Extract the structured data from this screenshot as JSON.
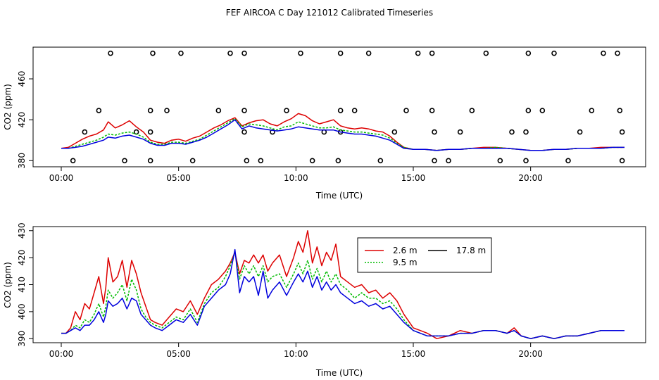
{
  "figure_title": "FEF AIRCOA C  Day 121012  Calibrated Timeseries",
  "colors": {
    "s26": "#dd0000",
    "s95": "#00bb00",
    "s178": "#0000dd"
  },
  "chart_data": [
    {
      "type": "line",
      "title": "FEF AIRCOA C  Day 121012  Calibrated Timeseries",
      "xlabel": "Time (UTC)",
      "ylabel": "CO2 (ppm)",
      "xlim": [
        -1.2,
        24.9
      ],
      "ylim": [
        374,
        491
      ],
      "x_ticks": [
        0,
        5,
        10,
        15,
        20
      ],
      "x_tick_labels": [
        "00:00",
        "05:00",
        "10:00",
        "15:00",
        "20:00"
      ],
      "y_ticks": [
        380,
        420,
        460
      ],
      "y_tick_labels": [
        "380",
        "420",
        "460"
      ],
      "x": [
        0.0,
        0.3,
        0.6,
        0.9,
        1.2,
        1.5,
        1.8,
        2.0,
        2.3,
        2.6,
        2.9,
        3.2,
        3.5,
        3.8,
        4.1,
        4.4,
        4.7,
        5.0,
        5.3,
        5.6,
        5.9,
        6.2,
        6.5,
        6.8,
        7.1,
        7.4,
        7.7,
        8.0,
        8.3,
        8.6,
        8.9,
        9.2,
        9.5,
        9.8,
        10.1,
        10.4,
        10.7,
        11.0,
        11.3,
        11.6,
        11.9,
        12.2,
        12.5,
        12.8,
        13.1,
        13.4,
        13.7,
        14.0,
        14.3,
        14.6,
        15.0,
        15.5,
        16.0,
        16.5,
        17.0,
        17.5,
        18.0,
        18.5,
        19.0,
        19.5,
        20.0,
        20.5,
        21.0,
        21.5,
        22.0,
        22.5,
        23.0,
        23.5,
        24.0
      ],
      "series": [
        {
          "name": "2.6 m",
          "color": "#dd0000",
          "values": [
            392,
            393,
            397,
            401,
            404,
            406,
            410,
            418,
            412,
            415,
            419,
            413,
            408,
            400,
            398,
            397,
            400,
            401,
            399,
            402,
            404,
            408,
            412,
            415,
            419,
            422,
            414,
            417,
            419,
            420,
            416,
            414,
            418,
            421,
            426,
            424,
            419,
            416,
            418,
            420,
            414,
            412,
            411,
            412,
            411,
            409,
            408,
            404,
            398,
            393,
            391,
            391,
            390,
            391,
            391,
            392,
            393,
            393,
            392,
            391,
            390,
            390,
            391,
            391,
            392,
            392,
            393,
            393,
            393
          ]
        },
        {
          "name": "9.5 m",
          "color": "#00bb00",
          "values": [
            392,
            392,
            394,
            396,
            398,
            400,
            403,
            406,
            405,
            407,
            408,
            406,
            403,
            398,
            396,
            396,
            398,
            398,
            397,
            399,
            401,
            405,
            409,
            413,
            417,
            421,
            413,
            416,
            415,
            414,
            412,
            410,
            413,
            414,
            418,
            416,
            414,
            412,
            412,
            413,
            410,
            409,
            408,
            408,
            407,
            406,
            405,
            402,
            397,
            393,
            391,
            391,
            390,
            391,
            391,
            392,
            392,
            393,
            392,
            391,
            390,
            390,
            391,
            391,
            392,
            392,
            392,
            393,
            393
          ]
        },
        {
          "name": "17.8 m",
          "color": "#0000dd",
          "values": [
            392,
            392,
            393,
            394,
            396,
            398,
            400,
            403,
            402,
            404,
            405,
            403,
            401,
            397,
            395,
            395,
            397,
            397,
            396,
            398,
            400,
            403,
            407,
            411,
            415,
            420,
            411,
            414,
            412,
            411,
            410,
            409,
            410,
            411,
            413,
            412,
            411,
            410,
            410,
            410,
            408,
            407,
            406,
            406,
            405,
            404,
            402,
            400,
            396,
            392,
            391,
            391,
            390,
            391,
            391,
            392,
            392,
            392,
            392,
            391,
            390,
            390,
            391,
            391,
            392,
            392,
            392,
            393,
            393
          ]
        }
      ],
      "points": [
        {
          "x": 2.1,
          "y": 485
        },
        {
          "x": 3.9,
          "y": 485
        },
        {
          "x": 5.1,
          "y": 485
        },
        {
          "x": 7.2,
          "y": 485
        },
        {
          "x": 7.8,
          "y": 485
        },
        {
          "x": 10.2,
          "y": 485
        },
        {
          "x": 11.9,
          "y": 485
        },
        {
          "x": 13.1,
          "y": 485
        },
        {
          "x": 15.2,
          "y": 485
        },
        {
          "x": 15.8,
          "y": 485
        },
        {
          "x": 18.1,
          "y": 485
        },
        {
          "x": 19.9,
          "y": 485
        },
        {
          "x": 21.0,
          "y": 485
        },
        {
          "x": 23.1,
          "y": 485
        },
        {
          "x": 23.7,
          "y": 485
        },
        {
          "x": 1.6,
          "y": 429
        },
        {
          "x": 3.8,
          "y": 429
        },
        {
          "x": 4.5,
          "y": 429
        },
        {
          "x": 6.7,
          "y": 429
        },
        {
          "x": 7.8,
          "y": 429
        },
        {
          "x": 9.6,
          "y": 429
        },
        {
          "x": 11.9,
          "y": 429
        },
        {
          "x": 12.5,
          "y": 429
        },
        {
          "x": 14.7,
          "y": 429
        },
        {
          "x": 15.8,
          "y": 429
        },
        {
          "x": 17.5,
          "y": 429
        },
        {
          "x": 19.9,
          "y": 429
        },
        {
          "x": 20.5,
          "y": 429
        },
        {
          "x": 22.6,
          "y": 429
        },
        {
          "x": 23.8,
          "y": 429
        },
        {
          "x": 1.0,
          "y": 408
        },
        {
          "x": 3.2,
          "y": 408
        },
        {
          "x": 3.8,
          "y": 408
        },
        {
          "x": 7.8,
          "y": 408
        },
        {
          "x": 9.0,
          "y": 408
        },
        {
          "x": 11.2,
          "y": 408
        },
        {
          "x": 11.9,
          "y": 408
        },
        {
          "x": 14.2,
          "y": 408
        },
        {
          "x": 15.9,
          "y": 408
        },
        {
          "x": 17.0,
          "y": 408
        },
        {
          "x": 19.2,
          "y": 408
        },
        {
          "x": 19.8,
          "y": 408
        },
        {
          "x": 22.1,
          "y": 408
        },
        {
          "x": 23.9,
          "y": 408
        },
        {
          "x": 0.5,
          "y": 380
        },
        {
          "x": 2.7,
          "y": 380
        },
        {
          "x": 3.8,
          "y": 380
        },
        {
          "x": 5.6,
          "y": 380
        },
        {
          "x": 7.9,
          "y": 380
        },
        {
          "x": 8.5,
          "y": 380
        },
        {
          "x": 10.7,
          "y": 380
        },
        {
          "x": 11.8,
          "y": 380
        },
        {
          "x": 13.6,
          "y": 380
        },
        {
          "x": 15.9,
          "y": 380
        },
        {
          "x": 16.5,
          "y": 380
        },
        {
          "x": 18.7,
          "y": 380
        },
        {
          "x": 19.8,
          "y": 380
        },
        {
          "x": 21.6,
          "y": 380
        },
        {
          "x": 23.9,
          "y": 380
        }
      ]
    },
    {
      "type": "line",
      "title": "",
      "xlabel": "Time (UTC)",
      "ylabel": "CO2 (ppm)",
      "xlim": [
        -1.2,
        24.9
      ],
      "ylim": [
        388.5,
        431.5
      ],
      "x_ticks": [
        0,
        5,
        10,
        15,
        20
      ],
      "x_tick_labels": [
        "00:00",
        "05:00",
        "10:00",
        "15:00",
        "20:00"
      ],
      "y_ticks": [
        390,
        400,
        410,
        420,
        430
      ],
      "y_tick_labels": [
        "390",
        "400",
        "410",
        "420",
        "430"
      ],
      "legend": {
        "placement": "top-center",
        "entries": [
          "2.6 m",
          "9.5 m",
          "17.8 m"
        ]
      },
      "x": [
        0.0,
        0.2,
        0.4,
        0.6,
        0.8,
        1.0,
        1.2,
        1.4,
        1.6,
        1.8,
        1.9,
        2.0,
        2.2,
        2.4,
        2.6,
        2.8,
        3.0,
        3.2,
        3.4,
        3.6,
        3.8,
        4.0,
        4.3,
        4.6,
        4.9,
        5.2,
        5.5,
        5.8,
        6.1,
        6.4,
        6.7,
        7.0,
        7.2,
        7.4,
        7.6,
        7.8,
        8.0,
        8.2,
        8.4,
        8.6,
        8.8,
        9.0,
        9.3,
        9.6,
        9.9,
        10.1,
        10.3,
        10.5,
        10.7,
        10.9,
        11.1,
        11.3,
        11.5,
        11.7,
        11.9,
        12.2,
        12.5,
        12.8,
        13.1,
        13.4,
        13.7,
        14.0,
        14.3,
        14.6,
        15.0,
        15.3,
        15.6,
        16.0,
        16.5,
        17.0,
        17.5,
        18.0,
        18.5,
        19.0,
        19.3,
        19.6,
        20.0,
        20.5,
        21.0,
        21.5,
        22.0,
        22.5,
        23.0,
        23.5,
        24.0
      ],
      "series": [
        {
          "name": "2.6 m",
          "color": "#dd0000",
          "values": [
            392,
            392,
            394,
            400,
            397,
            403,
            401,
            407,
            413,
            403,
            409,
            420,
            411,
            413,
            419,
            409,
            419,
            414,
            407,
            402,
            397,
            396,
            395,
            398,
            401,
            400,
            404,
            399,
            405,
            410,
            412,
            415,
            418,
            422,
            414,
            419,
            418,
            421,
            418,
            421,
            415,
            418,
            421,
            413,
            420,
            426,
            422,
            430,
            418,
            424,
            417,
            422,
            419,
            425,
            413,
            411,
            409,
            410,
            407,
            408,
            405,
            407,
            404,
            399,
            394,
            393,
            392,
            390,
            391,
            393,
            392,
            393,
            393,
            392,
            394,
            391,
            390,
            391,
            390,
            391,
            391,
            392,
            393,
            393,
            393
          ]
        },
        {
          "name": "9.5 m",
          "color": "#00bb00",
          "values": [
            392,
            392,
            393,
            395,
            394,
            397,
            396,
            399,
            403,
            398,
            402,
            408,
            405,
            407,
            410,
            404,
            412,
            408,
            401,
            398,
            396,
            395,
            394,
            396,
            398,
            397,
            401,
            396,
            403,
            407,
            409,
            413,
            417,
            422,
            412,
            417,
            414,
            417,
            413,
            417,
            411,
            413,
            414,
            409,
            414,
            418,
            414,
            419,
            412,
            416,
            411,
            415,
            411,
            414,
            410,
            408,
            405,
            407,
            405,
            405,
            403,
            404,
            401,
            397,
            393,
            392,
            391,
            391,
            391,
            392,
            392,
            393,
            393,
            392,
            393,
            391,
            390,
            391,
            390,
            391,
            391,
            392,
            393,
            393,
            393
          ]
        },
        {
          "name": "17.8 m",
          "color": "#0000dd",
          "values": [
            392,
            392,
            393,
            394,
            393,
            395,
            395,
            397,
            400,
            396,
            399,
            404,
            402,
            403,
            405,
            401,
            405,
            404,
            399,
            397,
            395,
            394,
            393,
            395,
            397,
            396,
            399,
            395,
            402,
            405,
            408,
            410,
            414,
            423,
            407,
            413,
            411,
            413,
            406,
            415,
            405,
            408,
            411,
            406,
            411,
            414,
            411,
            415,
            409,
            413,
            408,
            411,
            408,
            410,
            407,
            405,
            403,
            404,
            402,
            403,
            401,
            402,
            399,
            396,
            393,
            392,
            391,
            391,
            391,
            392,
            392,
            393,
            393,
            392,
            393,
            391,
            390,
            391,
            390,
            391,
            391,
            392,
            393,
            393,
            393
          ]
        }
      ]
    }
  ]
}
